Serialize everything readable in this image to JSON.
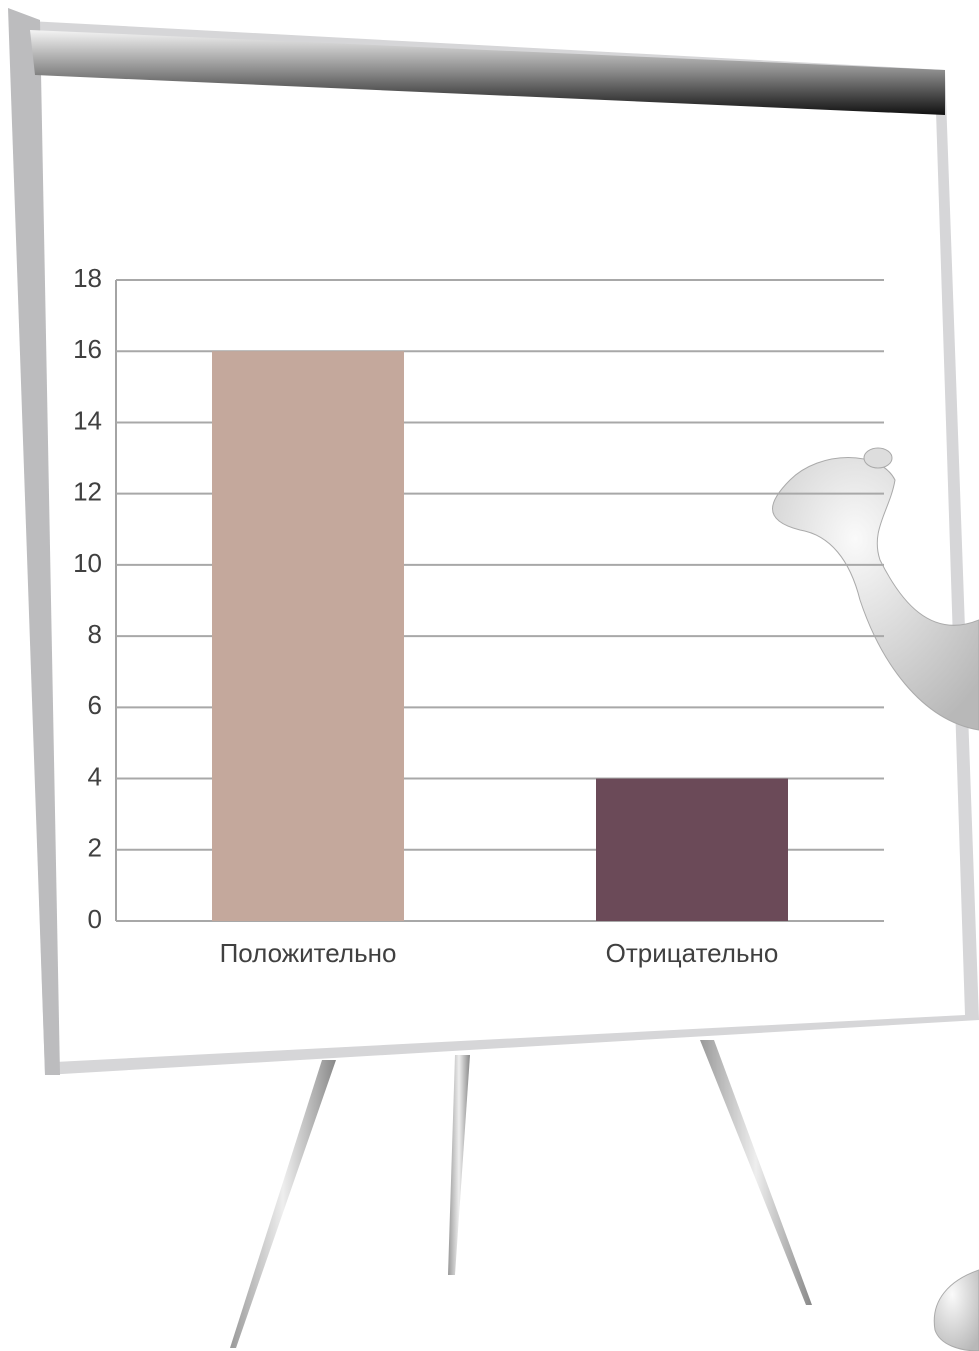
{
  "chart_data": {
    "type": "bar",
    "categories": [
      "Положительно",
      "Отрицательно"
    ],
    "values": [
      16,
      4
    ],
    "colors": [
      "#c4a89c",
      "#6b4a58"
    ],
    "ylim": [
      0,
      18
    ],
    "yticks": [
      0,
      2,
      4,
      6,
      8,
      10,
      12,
      14,
      16,
      18
    ],
    "grid": true
  }
}
